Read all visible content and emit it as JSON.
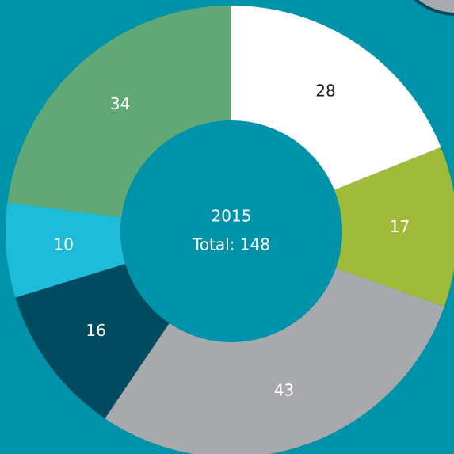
{
  "chart_data": {
    "type": "donut",
    "title": "2015",
    "subtitle": "Total: 148",
    "values": [
      28,
      17,
      43,
      16,
      10,
      34
    ],
    "colors": [
      "#ffffff",
      "#a0bb3a",
      "#a7a9ac",
      "#004b5f",
      "#1dbcd9",
      "#60a976"
    ]
  }
}
